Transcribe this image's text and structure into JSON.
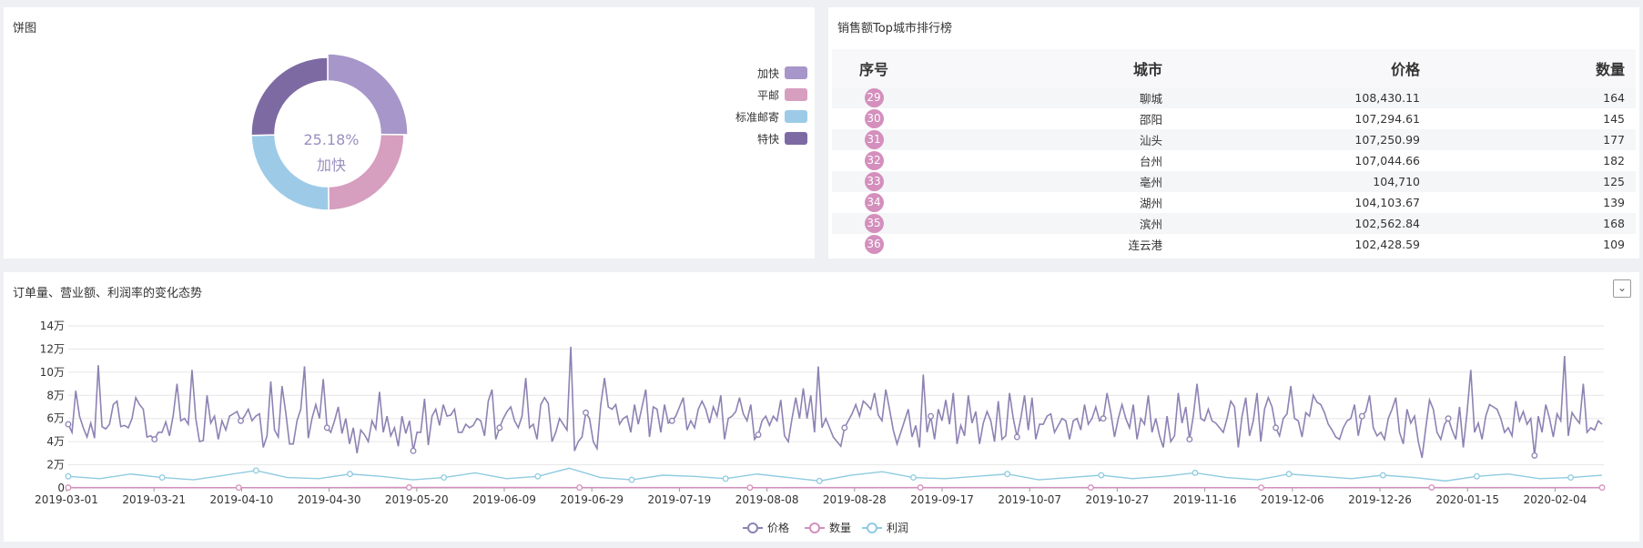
{
  "pie_panel": {
    "title": "饼图",
    "center_percent": "25.18%",
    "center_label": "加快",
    "legend": [
      {
        "label": "加快",
        "color": "#a796c9"
      },
      {
        "label": "平邮",
        "color": "#d69ebf"
      },
      {
        "label": "标准邮寄",
        "color": "#9dcbe7"
      },
      {
        "label": "特快",
        "color": "#7d6aa3"
      }
    ]
  },
  "table_panel": {
    "title": "销售额Top城市排行榜",
    "headers": [
      "序号",
      "城市",
      "价格",
      "数量"
    ],
    "rows": [
      {
        "no": "29",
        "city": "聊城",
        "price": "108,430.11",
        "qty": "164"
      },
      {
        "no": "30",
        "city": "邵阳",
        "price": "107,294.61",
        "qty": "145"
      },
      {
        "no": "31",
        "city": "汕头",
        "price": "107,250.99",
        "qty": "177"
      },
      {
        "no": "32",
        "city": "台州",
        "price": "107,044.66",
        "qty": "182"
      },
      {
        "no": "33",
        "city": "亳州",
        "price": "104,710",
        "qty": "125"
      },
      {
        "no": "34",
        "city": "湖州",
        "price": "104,103.67",
        "qty": "139"
      },
      {
        "no": "35",
        "city": "滨州",
        "price": "102,562.84",
        "qty": "168"
      },
      {
        "no": "36",
        "city": "连云港",
        "price": "102,428.59",
        "qty": "109"
      }
    ]
  },
  "trend_panel": {
    "title": "订单量、营业额、利润率的变化态势",
    "dropdown_icon": "chevron-down-icon"
  },
  "chart_data": [
    {
      "type": "pie",
      "variant": "donut",
      "slices": [
        {
          "label": "加快",
          "value": 25.18,
          "color": "#a796c9"
        },
        {
          "label": "平邮",
          "value": 24.6,
          "color": "#d69ebf"
        },
        {
          "label": "标准邮寄",
          "value": 24.9,
          "color": "#9dcbe7"
        },
        {
          "label": "特快",
          "value": 25.32,
          "color": "#7d6aa3"
        }
      ],
      "legend_position": "top-right"
    },
    {
      "type": "line",
      "y_ticks": [
        "0",
        "2万",
        "4万",
        "6万",
        "8万",
        "10万",
        "12万",
        "14万"
      ],
      "ylim": [
        0,
        140000
      ],
      "x_ticks": [
        "2019-03-01",
        "2019-03-21",
        "2019-04-10",
        "2019-04-30",
        "2019-05-20",
        "2019-06-09",
        "2019-06-29",
        "2019-07-19",
        "2019-08-08",
        "2019-08-28",
        "2019-09-17",
        "2019-10-07",
        "2019-10-27",
        "2019-11-16",
        "2019-12-06",
        "2019-12-26",
        "2020-01-15",
        "2020-02-04"
      ],
      "x_range": [
        "2019-03-01",
        "2020-02-19"
      ],
      "grid": true,
      "legend_position": "bottom",
      "series": [
        {
          "name": "价格",
          "color": "#8e82b3",
          "values": [
            55000,
            48000,
            84000,
            62000,
            52000,
            44000,
            56000,
            43000,
            106000,
            53000,
            51000,
            55000,
            72000,
            75000,
            53000,
            54000,
            52000,
            60000,
            78000,
            72000,
            68000,
            44000,
            45000,
            42000,
            48000,
            48000,
            57000,
            45000,
            63000,
            90000,
            58000,
            60000,
            55000,
            102000,
            60000,
            40000,
            41000,
            80000,
            56000,
            62000,
            42000,
            58000,
            50000,
            62000,
            64000,
            66000,
            58000,
            62000,
            68000,
            58000,
            62000,
            64000,
            35000,
            45000,
            92000,
            50000,
            44000,
            88000,
            65000,
            38000,
            38000,
            58000,
            68000,
            105000,
            43000,
            60000,
            72000,
            60000,
            94000,
            52000,
            48000,
            58000,
            70000,
            47000,
            60000,
            38000,
            52000,
            30000,
            50000,
            46000,
            40000,
            58000,
            51000,
            83000,
            48000,
            62000,
            45000,
            52000,
            36000,
            62000,
            47000,
            58000,
            32000,
            48000,
            48000,
            77000,
            37000,
            62000,
            68000,
            54000,
            72000,
            62000,
            63000,
            68000,
            48000,
            48000,
            55000,
            52000,
            54000,
            60000,
            58000,
            45000,
            75000,
            85000,
            42000,
            52000,
            60000,
            66000,
            70000,
            58000,
            52000,
            62000,
            95000,
            52000,
            55000,
            42000,
            72000,
            78000,
            73000,
            40000,
            48000,
            60000,
            55000,
            50000,
            122000,
            32000,
            40000,
            44000,
            65000,
            60000,
            40000,
            34000,
            72000,
            95000,
            70000,
            68000,
            72000,
            55000,
            60000,
            62000,
            48000,
            72000,
            55000,
            70000,
            85000,
            44000,
            70000,
            68000,
            48000,
            72000,
            56000,
            58000,
            62000,
            70000,
            78000,
            50000,
            58000,
            52000,
            68000,
            75000,
            68000,
            56000,
            70000,
            62000,
            80000,
            42000,
            60000,
            62000,
            66000,
            78000,
            64000,
            58000,
            72000,
            42000,
            46000,
            58000,
            62000,
            54000,
            62000,
            58000,
            76000,
            45000,
            40000,
            60000,
            78000,
            60000,
            86000,
            60000,
            80000,
            48000,
            105000,
            52000,
            60000,
            52000,
            44000,
            40000,
            36000,
            52000,
            58000,
            64000,
            72000,
            62000,
            75000,
            72000,
            68000,
            82000,
            63000,
            58000,
            85000,
            68000,
            50000,
            38000,
            48000,
            58000,
            68000,
            44000,
            54000,
            35000,
            98000,
            48000,
            62000,
            42000,
            68000,
            58000,
            76000,
            55000,
            82000,
            38000,
            54000,
            45000,
            80000,
            56000,
            66000,
            38000,
            56000,
            66000,
            58000,
            40000,
            75000,
            42000,
            45000,
            82000,
            60000,
            44000,
            60000,
            80000,
            50000,
            78000,
            42000,
            55000,
            55000,
            62000,
            64000,
            48000,
            54000,
            60000,
            58000,
            42000,
            58000,
            60000,
            50000,
            72000,
            55000,
            60000,
            70000,
            58000,
            60000,
            82000,
            65000,
            44000,
            60000,
            72000,
            60000,
            52000,
            72000,
            42000,
            60000,
            55000,
            80000,
            48000,
            60000,
            45000,
            35000,
            62000,
            40000,
            45000,
            82000,
            56000,
            70000,
            42000,
            62000,
            90000,
            60000,
            58000,
            68000,
            58000,
            56000,
            52000,
            48000,
            60000,
            75000,
            70000,
            35000,
            62000,
            78000,
            45000,
            58000,
            82000,
            40000,
            68000,
            78000,
            70000,
            52000,
            45000,
            60000,
            64000,
            88000,
            60000,
            58000,
            44000,
            65000,
            62000,
            80000,
            74000,
            72000,
            65000,
            55000,
            50000,
            44000,
            42000,
            52000,
            58000,
            60000,
            72000,
            45000,
            62000,
            66000,
            80000,
            52000,
            45000,
            48000,
            42000,
            60000,
            68000,
            78000,
            48000,
            38000,
            68000,
            56000,
            62000,
            40000,
            26000,
            52000,
            76000,
            68000,
            48000,
            42000,
            55000,
            60000,
            50000,
            42000,
            70000,
            35000,
            65000,
            102000,
            48000,
            56000,
            42000,
            62000,
            72000,
            70000,
            68000,
            60000,
            48000,
            52000,
            45000,
            75000,
            58000,
            66000,
            55000,
            60000,
            28000,
            62000,
            48000,
            72000,
            60000,
            44000,
            64000,
            58000,
            114000,
            45000,
            65000,
            60000,
            56000,
            90000,
            48000,
            52000,
            50000,
            58000,
            55000
          ]
        },
        {
          "name": "数量",
          "color": "#d48fbd",
          "values": [
            300,
            250,
            400,
            350,
            280,
            300,
            320,
            260,
            380,
            300
          ]
        },
        {
          "name": "利润",
          "color": "#8fcbe0",
          "values": [
            10000,
            8000,
            12000,
            9000,
            7000,
            11000,
            15000,
            9000,
            8000,
            12000,
            10000,
            7000,
            9000,
            13000,
            8000,
            10000,
            17000,
            9000,
            7000,
            11000,
            10000,
            8000,
            12000,
            9000,
            6000,
            11000,
            14000,
            9000,
            8000,
            10000,
            12000,
            7000,
            9000,
            11000,
            8000,
            10000,
            13000,
            9000,
            7000,
            12000,
            10000,
            8000,
            11000,
            9000,
            6000,
            10000,
            12000,
            8000,
            9000,
            11000
          ]
        }
      ]
    }
  ]
}
